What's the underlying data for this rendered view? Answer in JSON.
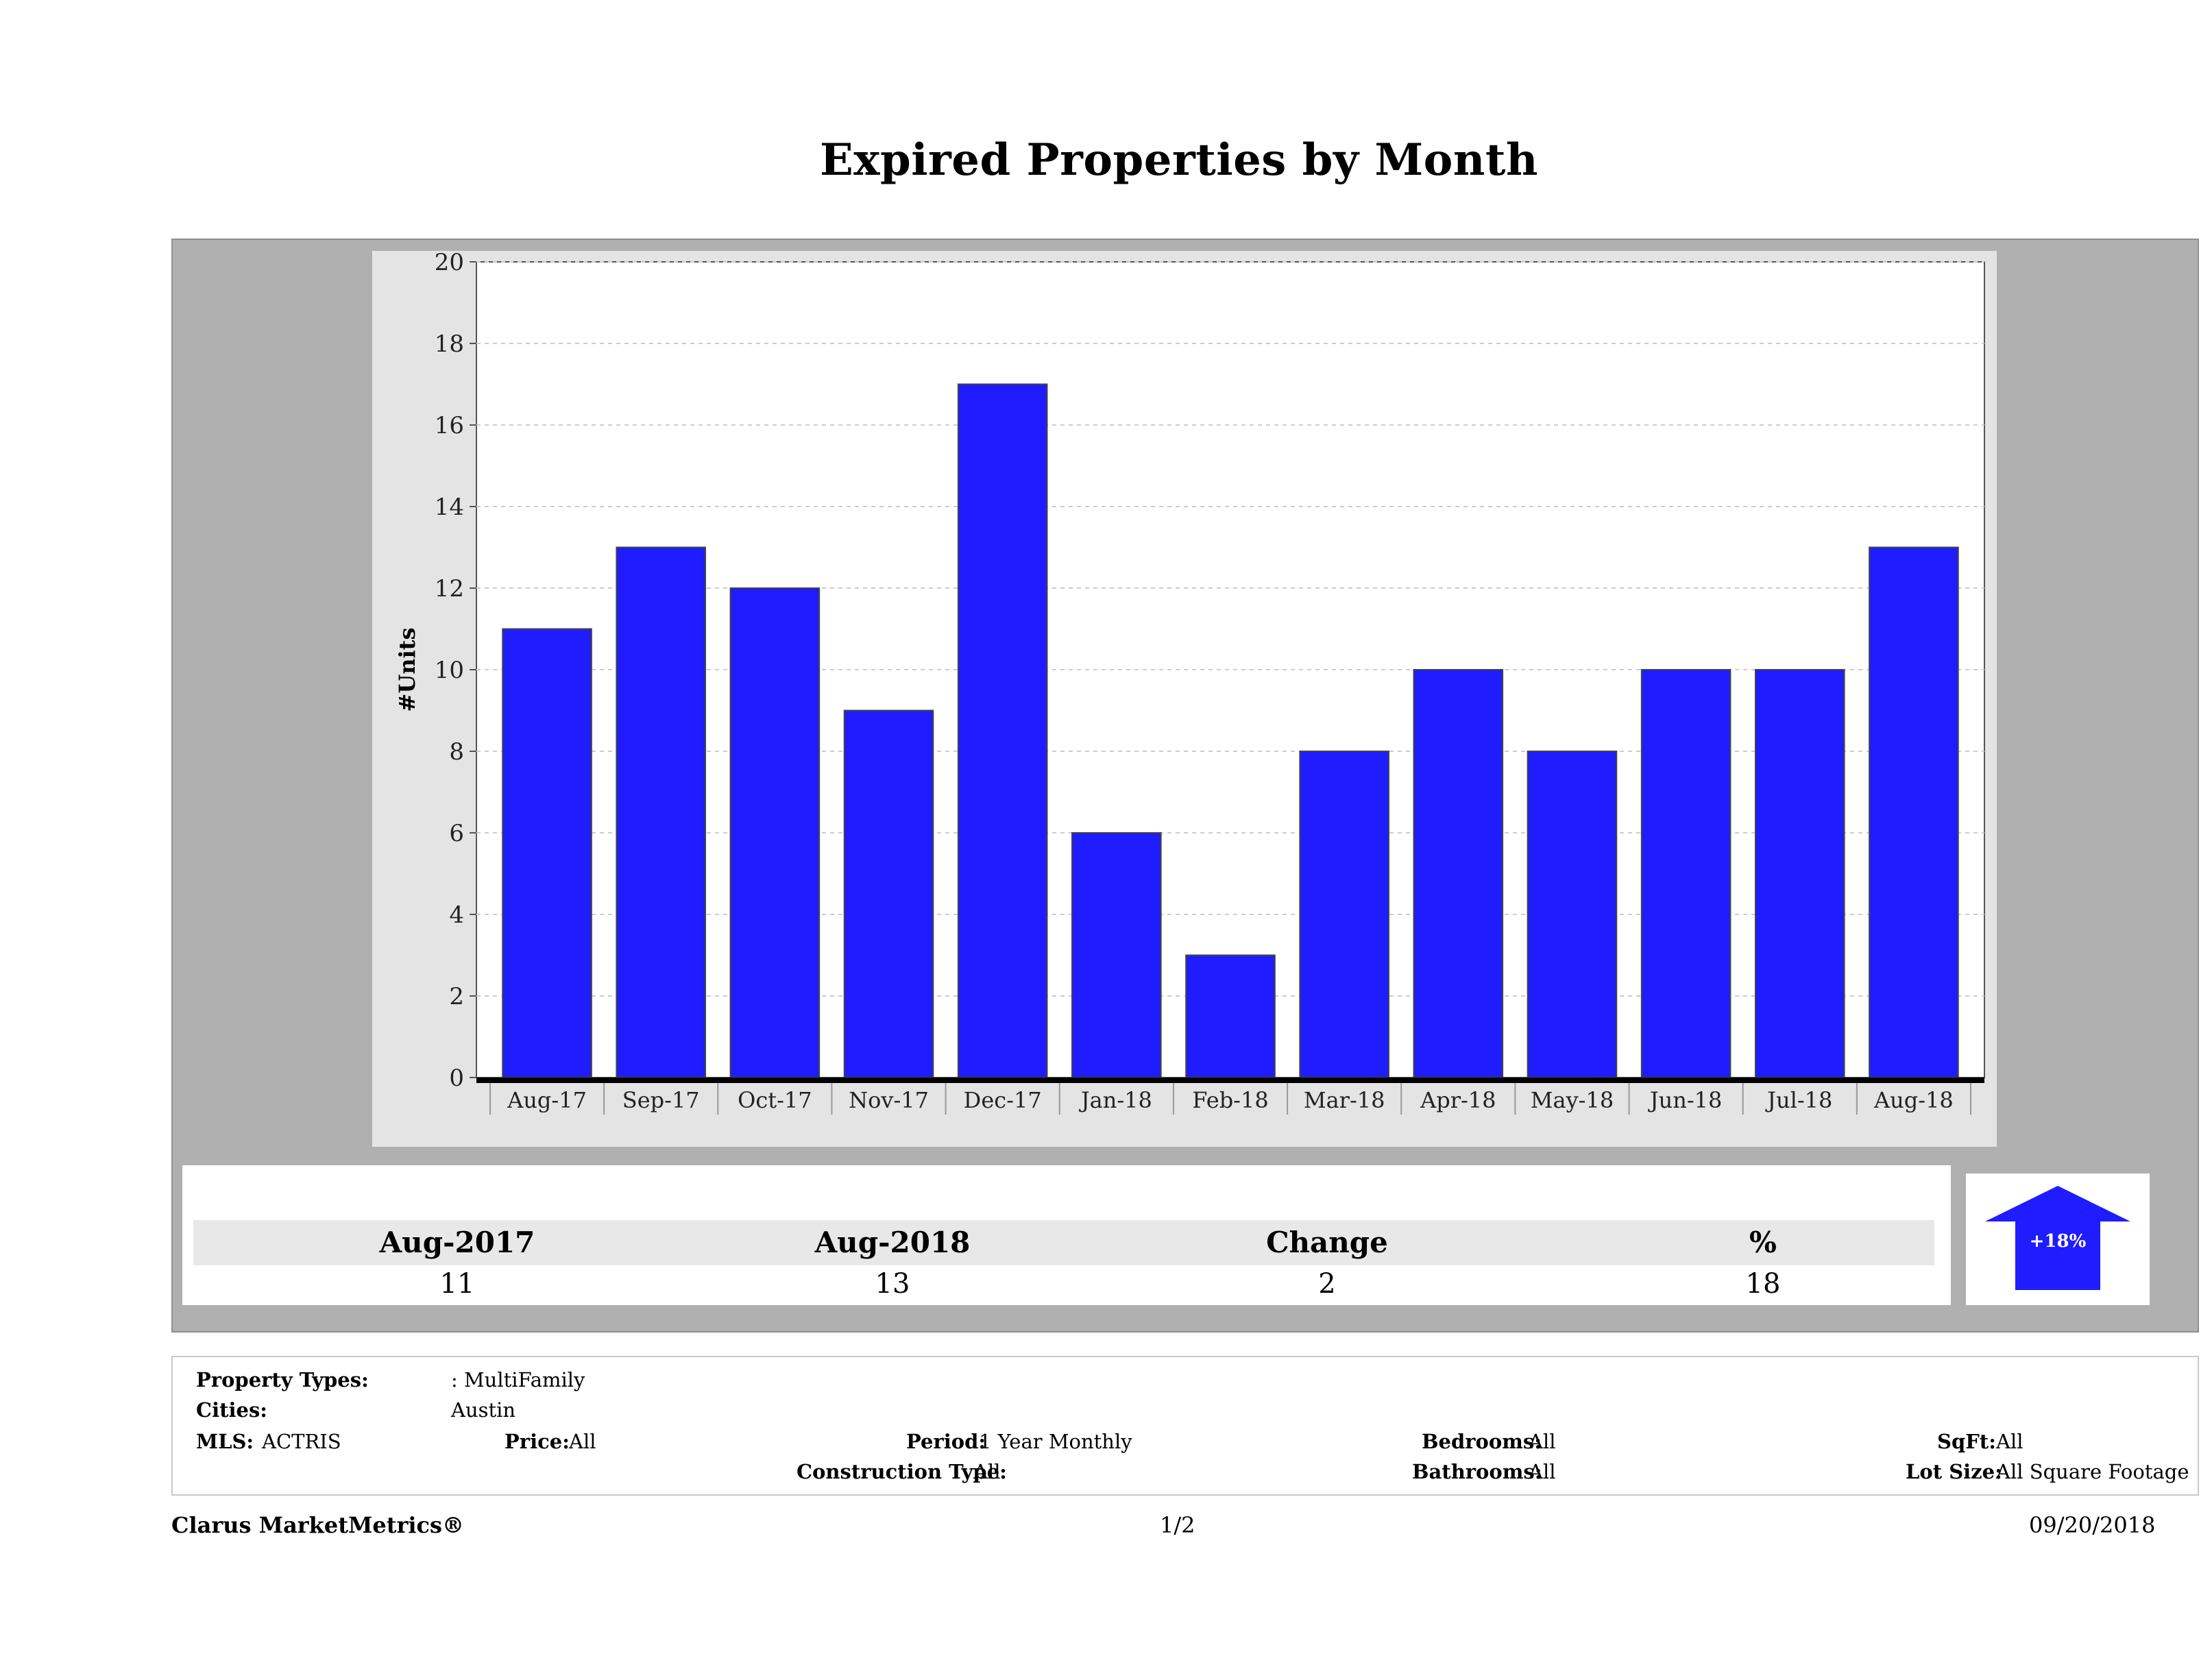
{
  "title": "Expired Properties by Month",
  "colors": {
    "bar": "#1f1cff",
    "panel": "#b0b0b0",
    "arrow": "#1f1cff"
  },
  "chart_data": {
    "type": "bar",
    "categories": [
      "Aug-17",
      "Sep-17",
      "Oct-17",
      "Nov-17",
      "Dec-17",
      "Jan-18",
      "Feb-18",
      "Mar-18",
      "Apr-18",
      "May-18",
      "Jun-18",
      "Jul-18",
      "Aug-18"
    ],
    "values": [
      11,
      13,
      12,
      9,
      17,
      6,
      3,
      8,
      10,
      8,
      10,
      10,
      13
    ],
    "ylabel": "#Units",
    "xlabel": "",
    "ylim": [
      0,
      20
    ],
    "yticks": [
      0,
      2,
      4,
      6,
      8,
      10,
      12,
      14,
      16,
      18,
      20
    ],
    "grid": true
  },
  "stats": {
    "headers": [
      "Aug-2017",
      "Aug-2018",
      "Change",
      "%"
    ],
    "values": [
      "11",
      "13",
      "2",
      "18"
    ],
    "arrow_label": "+18%",
    "arrow_icon": "up-arrow-icon"
  },
  "filters": {
    "property_types_label": "Property Types:",
    "property_types_value": ": MultiFamily",
    "cities_label": "Cities:",
    "cities_value": "Austin",
    "mls_label": "MLS:",
    "mls_value": "ACTRIS",
    "price_label": "Price:",
    "price_value": "All",
    "period_label": "Period:",
    "period_value": "1 Year Monthly",
    "construction_label": "Construction Type:",
    "construction_value": "All",
    "bedrooms_label": "Bedrooms:",
    "bedrooms_value": "All",
    "bathrooms_label": "Bathrooms:",
    "bathrooms_value": "All",
    "sqft_label": "SqFt:",
    "sqft_value": "All",
    "lotsize_label": "Lot Size:",
    "lotsize_value": "All Square Footage"
  },
  "footer": {
    "brand": "Clarus MarketMetrics®",
    "page": "1/2",
    "date": "09/20/2018"
  }
}
